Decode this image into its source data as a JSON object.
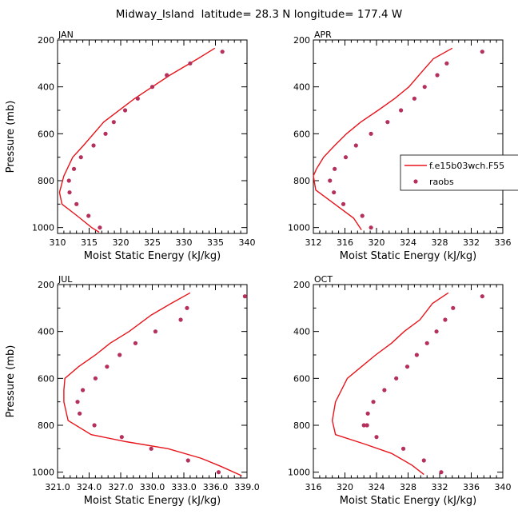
{
  "figure": {
    "title": "Midway_Island  latitude= 28.3 N longitude= 177.4 W"
  },
  "colors": {
    "model_line": "#e8141b",
    "obs_marker": "#b5305a",
    "axis": "#000000"
  },
  "legend": {
    "entries": [
      {
        "label": "f.e15b03wch.F55",
        "marker": "line"
      },
      {
        "label": "raobs",
        "marker": "dot"
      }
    ]
  },
  "chart_data": [
    {
      "type": "line",
      "panel_label": "JAN",
      "xlabel": "Moist Static Energy (kJ/kg)",
      "ylabel": "Pressure (mb)",
      "xlim": [
        310,
        340
      ],
      "ylim": [
        1025,
        200
      ],
      "xticks": [
        310,
        315,
        320,
        325,
        330,
        335,
        340
      ],
      "xtick_labels": [
        "310",
        "315",
        "320",
        "325",
        "330",
        "335",
        "340"
      ],
      "yticks": [
        200,
        400,
        600,
        800,
        1000
      ],
      "ytick_labels": [
        "200",
        "400",
        "600",
        "800",
        "1000"
      ],
      "series": [
        {
          "name": "f.e15b03wch.F55",
          "style": "line",
          "x": [
            334.9,
            332.2,
            327.8,
            322.2,
            317.3,
            314.1,
            312.4,
            311.0,
            310.3,
            310.7,
            313.1,
            315.4,
            316.6
          ],
          "y": [
            235,
            280,
            350,
            450,
            550,
            650,
            700,
            780,
            850,
            900,
            950,
            1000,
            1020
          ]
        },
        {
          "name": "raobs",
          "style": "marker",
          "x": [
            336.1,
            331.0,
            327.3,
            325.0,
            322.7,
            320.7,
            318.9,
            317.6,
            315.7,
            313.7,
            312.6,
            311.8,
            311.9,
            313.0,
            314.9,
            316.7
          ],
          "y": [
            250,
            300,
            350,
            400,
            450,
            500,
            550,
            600,
            650,
            700,
            750,
            800,
            850,
            900,
            950,
            1000
          ]
        }
      ]
    },
    {
      "type": "line",
      "panel_label": "APR",
      "xlabel": "Moist Static Energy (kJ/kg)",
      "ylabel": "",
      "xlim": [
        312,
        336
      ],
      "ylim": [
        1025,
        200
      ],
      "xticks": [
        312,
        316,
        320,
        324,
        328,
        332,
        336
      ],
      "xtick_labels": [
        "312",
        "316",
        "320",
        "324",
        "328",
        "332",
        "336"
      ],
      "yticks": [
        200,
        400,
        600,
        800,
        1000
      ],
      "ytick_labels": [
        "200",
        "400",
        "600",
        "800",
        "1000"
      ],
      "series": [
        {
          "name": "f.e15b03wch.F55",
          "style": "line",
          "x": [
            329.6,
            327.2,
            325.9,
            324.1,
            322.3,
            320.2,
            318.0,
            316.2,
            314.7,
            313.3,
            312.4,
            312.0,
            312.3,
            314.7,
            317.1,
            318.1
          ],
          "y": [
            235,
            280,
            330,
            400,
            450,
            500,
            550,
            600,
            650,
            700,
            750,
            780,
            840,
            900,
            960,
            1010
          ]
        },
        {
          "name": "raobs",
          "style": "marker",
          "x": [
            333.4,
            328.9,
            327.7,
            326.1,
            324.8,
            323.1,
            321.4,
            319.3,
            317.4,
            316.1,
            314.7,
            314.1,
            314.6,
            315.8,
            318.2,
            319.3
          ],
          "y": [
            250,
            300,
            350,
            400,
            450,
            500,
            550,
            600,
            650,
            700,
            750,
            800,
            850,
            900,
            950,
            1000
          ]
        }
      ]
    },
    {
      "type": "line",
      "panel_label": "JUL",
      "xlabel": "Moist Static Energy (kJ/kg)",
      "ylabel": "Pressure (mb)",
      "xlim": [
        321,
        339
      ],
      "ylim": [
        1025,
        200
      ],
      "xticks": [
        321,
        324,
        327,
        330,
        333,
        336,
        339
      ],
      "xtick_labels": [
        "321.0",
        "324.0",
        "327.0",
        "330.0",
        "333.0",
        "336.0",
        "339.0"
      ],
      "yticks": [
        200,
        400,
        600,
        800,
        1000
      ],
      "ytick_labels": [
        "200",
        "400",
        "600",
        "800",
        "1000"
      ],
      "series": [
        {
          "name": "f.e15b03wch.F55",
          "style": "line",
          "x": [
            333.6,
            331.8,
            329.9,
            327.8,
            326.0,
            324.6,
            323.0,
            321.7,
            321.6,
            321.6,
            322.0,
            324.2,
            327.5,
            331.5,
            334.6,
            336.5,
            338.5
          ],
          "y": [
            235,
            280,
            330,
            400,
            450,
            500,
            550,
            600,
            650,
            700,
            780,
            840,
            870,
            900,
            940,
            975,
            1015
          ]
        },
        {
          "name": "raobs",
          "style": "marker",
          "x": [
            338.8,
            333.3,
            332.7,
            330.3,
            328.4,
            326.9,
            325.7,
            324.6,
            323.4,
            322.9,
            323.1,
            324.5,
            327.1,
            329.9,
            333.4,
            336.3
          ],
          "y": [
            250,
            300,
            350,
            400,
            450,
            500,
            550,
            600,
            650,
            700,
            750,
            800,
            850,
            900,
            950,
            1000
          ]
        }
      ]
    },
    {
      "type": "line",
      "panel_label": "OCT",
      "xlabel": "Moist Static Energy (kJ/kg)",
      "ylabel": "",
      "xlim": [
        316,
        340
      ],
      "ylim": [
        1025,
        200
      ],
      "xticks": [
        316,
        320,
        324,
        328,
        332,
        336,
        340
      ],
      "xtick_labels": [
        "316",
        "320",
        "324",
        "328",
        "332",
        "336",
        "340"
      ],
      "yticks": [
        200,
        400,
        600,
        800,
        1000
      ],
      "ytick_labels": [
        "200",
        "400",
        "600",
        "800",
        "1000"
      ],
      "series": [
        {
          "name": "f.e15b03wch.F55",
          "style": "line",
          "x": [
            333.1,
            331.1,
            329.5,
            327.5,
            325.9,
            323.9,
            322.1,
            320.3,
            318.8,
            318.4,
            318.8,
            322.5,
            325.9,
            328.5,
            330.0
          ],
          "y": [
            235,
            280,
            350,
            400,
            450,
            500,
            550,
            600,
            700,
            780,
            840,
            880,
            920,
            970,
            1010
          ]
        },
        {
          "name": "raobs",
          "style": "marker",
          "x": [
            337.4,
            333.7,
            332.7,
            331.6,
            330.4,
            329.1,
            327.9,
            326.5,
            325.0,
            323.6,
            322.9,
            322.4,
            322.8,
            324.0,
            327.4,
            330.0,
            332.2
          ],
          "y": [
            250,
            300,
            350,
            400,
            450,
            500,
            550,
            600,
            650,
            700,
            750,
            800,
            800,
            850,
            900,
            950,
            1000
          ]
        }
      ]
    }
  ]
}
